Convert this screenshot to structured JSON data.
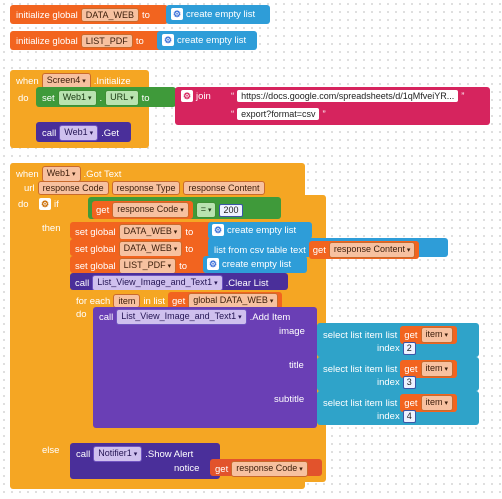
{
  "globals": [
    {
      "prefix": "initialize global",
      "name": "DATA_WEB",
      "to": "to",
      "value": "create empty list"
    },
    {
      "prefix": "initialize global",
      "name": "LIST_PDF",
      "to": "to",
      "value": "create empty list"
    }
  ],
  "screen_event": {
    "when": "when",
    "component": "Screen4",
    "event": ".Initialize",
    "do": "do",
    "set_kw": "set",
    "set_component": "Web1",
    "dot": ".",
    "set_prop": "URL",
    "to": "to",
    "join": "join",
    "url_part1": "https://docs.google.com/spreadsheets/d/1qMfveiYR...",
    "url_part2": "export?format=csv",
    "call_kw": "call",
    "call_component": "Web1",
    "call_method": ".Get"
  },
  "web_event": {
    "when": "when",
    "component": "Web1",
    "event": ".Got Text",
    "params": [
      "url",
      "response Code",
      "response Type",
      "response Content"
    ],
    "do": "do",
    "if": "if",
    "then": "then",
    "else": "else",
    "get": "get",
    "cond_var": "response Code",
    "cond_op": "=",
    "cond_value": "200",
    "set_global": "set global",
    "to": "to",
    "set1_var": "DATA_WEB",
    "set1_value": "create empty list",
    "set2_var": "DATA_WEB",
    "set2_value": "list from csv table",
    "set2_param": "text",
    "set2_get": "response Content",
    "set3_var": "LIST_PDF",
    "set3_value": "create empty list",
    "call_kw": "call",
    "clear_component": "List_View_Image_and_Text1",
    "clear_method": ".Clear List",
    "foreach": "for each",
    "item": "item",
    "in_list": "in list",
    "foreach_get": "global DATA_WEB",
    "loop_do": "do",
    "add_component": "List_View_Image_and_Text1",
    "add_method": ".Add Item",
    "add_params": [
      {
        "label": "image",
        "index": "2"
      },
      {
        "label": "title",
        "index": "3"
      },
      {
        "label": "subtitle",
        "index": "4"
      }
    ],
    "select_list_item": "select list item",
    "list_kw": "list",
    "index_kw": "index",
    "item_get": "item",
    "notifier_component": "Notifier1",
    "notifier_method": ".Show Alert",
    "notice_kw": "notice",
    "notice_get": "response Code"
  }
}
